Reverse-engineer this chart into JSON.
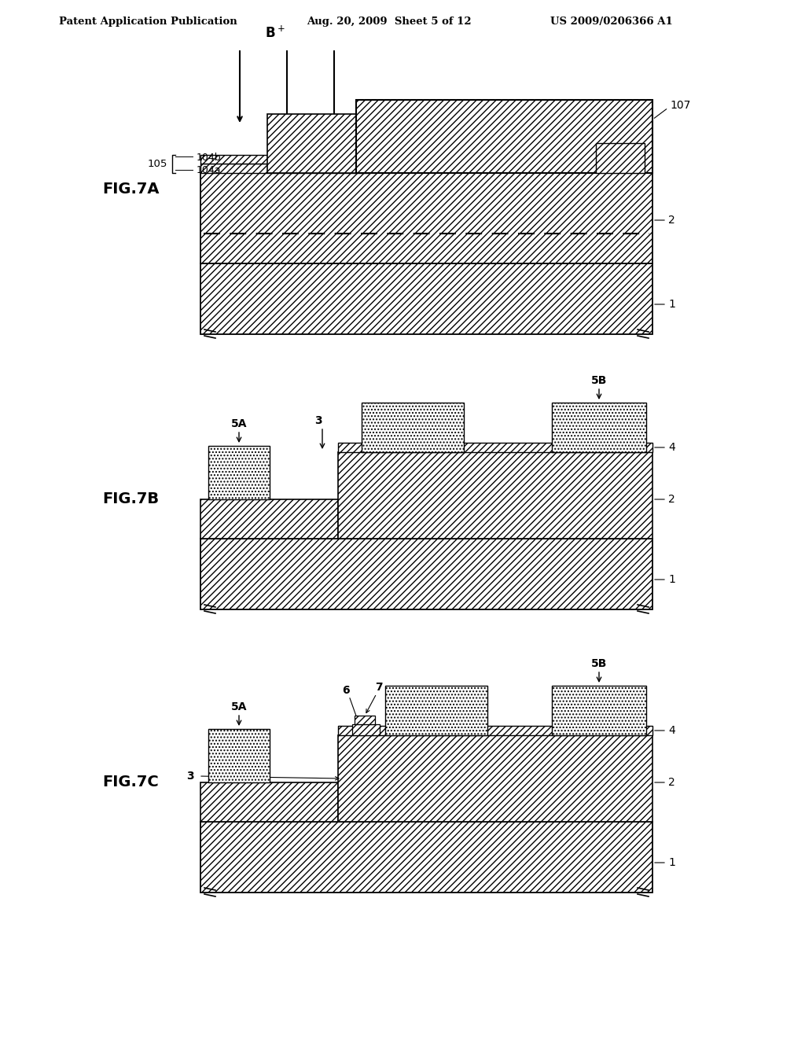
{
  "bg_color": "#ffffff",
  "header_left": "Patent Application Publication",
  "header_mid": "Aug. 20, 2009  Sheet 5 of 12",
  "header_right": "US 2009/0206366 A1"
}
